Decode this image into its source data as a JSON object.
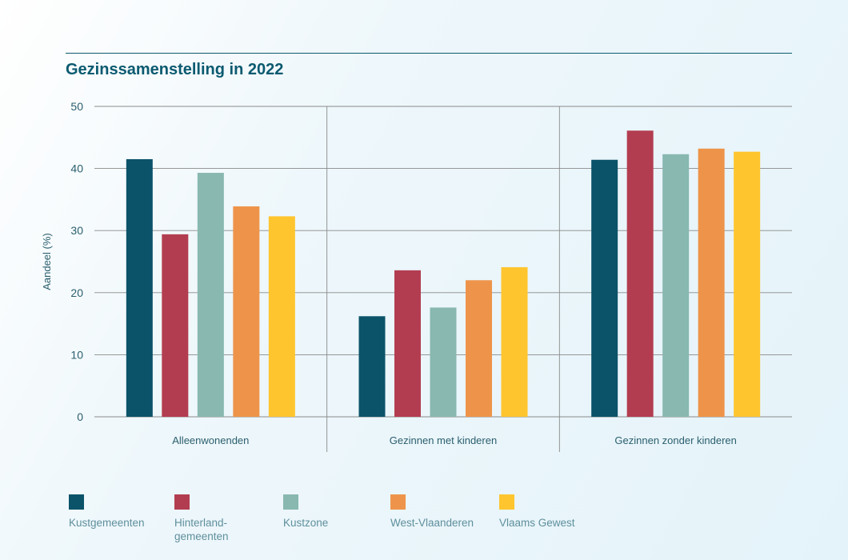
{
  "title": "Gezinssamenstelling in 2022",
  "chart_data": {
    "type": "bar",
    "title": "Gezinssamenstelling in 2022",
    "ylabel": "Aandeel (%)",
    "xlabel": "",
    "ylim": [
      0,
      50
    ],
    "yticks": [
      0,
      10,
      20,
      30,
      40,
      50
    ],
    "grid": true,
    "legend_position": "bottom",
    "categories": [
      "Alleenwonenden",
      "Gezinnen met kinderen",
      "Gezinnen zonder kinderen"
    ],
    "series": [
      {
        "name": "Kustgemeenten",
        "color": "#0b5369",
        "values": [
          41.5,
          16.2,
          41.4
        ]
      },
      {
        "name": "Hinterland-gemeenten",
        "label_lines": [
          "Hinterland-",
          "gemeenten"
        ],
        "color": "#b33d50",
        "values": [
          29.4,
          23.6,
          46.1
        ]
      },
      {
        "name": "Kustzone",
        "color": "#88b8b0",
        "values": [
          39.3,
          17.6,
          42.3
        ]
      },
      {
        "name": "West-Vlaanderen",
        "color": "#ee944a",
        "values": [
          33.9,
          22.0,
          43.2
        ]
      },
      {
        "name": "Vlaams Gewest",
        "color": "#ffc52f",
        "values": [
          32.3,
          24.1,
          42.7
        ]
      }
    ]
  }
}
